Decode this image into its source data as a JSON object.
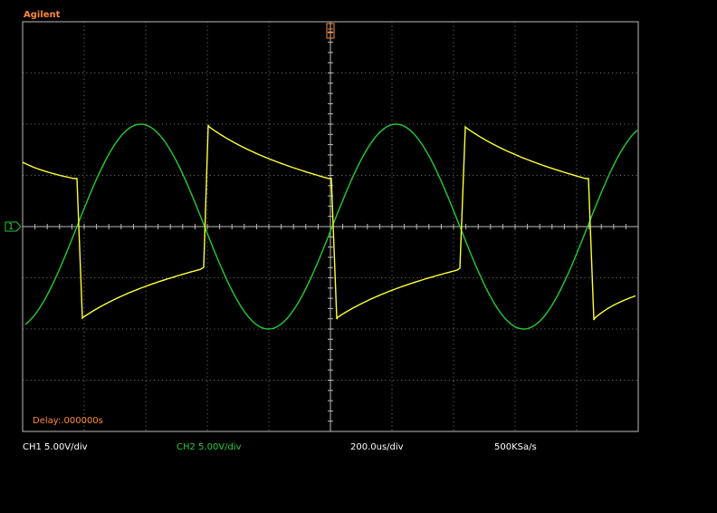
{
  "brand": "Agilent",
  "delay": "Delay:.000000s",
  "ground_marker": "1",
  "status_bar": {
    "ch1": "CH1 5.00V/div",
    "ch2": "CH2 5.00V/div",
    "timebase": "200.0us/div",
    "sample_rate": "500KSa/s"
  }
}
